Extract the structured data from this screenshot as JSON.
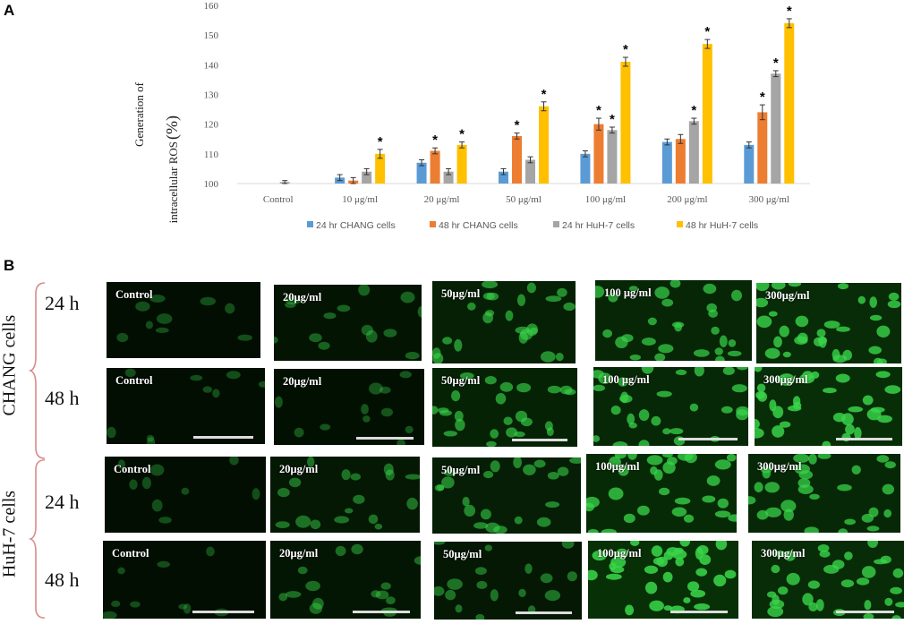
{
  "panelA": {
    "letter": "A"
  },
  "panelB": {
    "letter": "B"
  },
  "chart_data": {
    "type": "bar",
    "ylabel_line1": "Generation of",
    "ylabel_line2": "intracellular ROS",
    "ylabel_unit": "(%)",
    "ylim": [
      100,
      160
    ],
    "yticks": [
      100,
      110,
      120,
      130,
      140,
      150,
      160
    ],
    "grid": false,
    "legend_position": "bottom",
    "categories": [
      "Control",
      "10 μg/ml",
      "20 μg/ml",
      "50 μg/ml",
      "100 μg/ml",
      "200 μg/ml",
      "300 μg/ml"
    ],
    "series": [
      {
        "name": "24 hr CHANG cells",
        "color": "#5B9BD5",
        "values": [
          100,
          102,
          107,
          104,
          110,
          114,
          113
        ],
        "errors": [
          0,
          1,
          1,
          1,
          1,
          1,
          1
        ],
        "significant": [
          false,
          false,
          false,
          false,
          false,
          false,
          false
        ]
      },
      {
        "name": "48 hr CHANG cells",
        "color": "#ED7D31",
        "values": [
          100,
          101,
          111,
          116,
          120,
          115,
          124
        ],
        "errors": [
          0,
          1,
          1,
          1,
          2,
          1.5,
          2.5
        ],
        "significant": [
          false,
          false,
          true,
          true,
          true,
          false,
          true
        ]
      },
      {
        "name": "24 hr HuH-7 cells",
        "color": "#A5A5A5",
        "values": [
          100.5,
          104,
          104,
          108,
          118,
          121,
          137
        ],
        "errors": [
          0.5,
          1,
          1,
          1,
          1,
          1,
          1
        ],
        "significant": [
          false,
          false,
          false,
          false,
          true,
          true,
          true
        ]
      },
      {
        "name": "48 hr HuH-7 cells",
        "color": "#FFC000",
        "values": [
          100,
          110,
          113,
          126,
          141,
          147,
          154
        ],
        "errors": [
          0,
          1.5,
          1,
          1.5,
          1.5,
          1.5,
          1.5
        ],
        "significant": [
          false,
          true,
          true,
          true,
          true,
          true,
          true
        ]
      }
    ],
    "significance_mark": "*"
  },
  "micrographs": {
    "cell_groups": [
      "CHANG cells",
      "HuH-7 cells"
    ],
    "time_labels": [
      "24 h",
      "48 h",
      "24 h",
      "48 h"
    ],
    "rows": [
      {
        "labels": [
          "Control",
          "20μg/ml",
          "50μg/ml",
          "100  μg/ml",
          "300μg/ml"
        ],
        "intensity": [
          0.1,
          0.25,
          0.55,
          0.7,
          0.85
        ]
      },
      {
        "labels": [
          "Control",
          "20μg/ml",
          "50μg/ml",
          "100  μg/ml",
          "300μg/ml"
        ],
        "intensity": [
          0.1,
          0.15,
          0.6,
          0.75,
          0.9
        ]
      },
      {
        "labels": [
          "Control",
          "20μg/ml",
          "50μg/ml",
          "100μg/ml",
          "300μg/ml"
        ],
        "intensity": [
          0.1,
          0.35,
          0.5,
          0.8,
          0.75
        ]
      },
      {
        "labels": [
          "Control",
          "20μg/ml",
          "50μg/ml",
          "100μg/ml",
          "300μg/ml"
        ],
        "intensity": [
          0.1,
          0.3,
          0.35,
          0.95,
          0.85
        ]
      }
    ],
    "cell_color": "#39d44a"
  }
}
